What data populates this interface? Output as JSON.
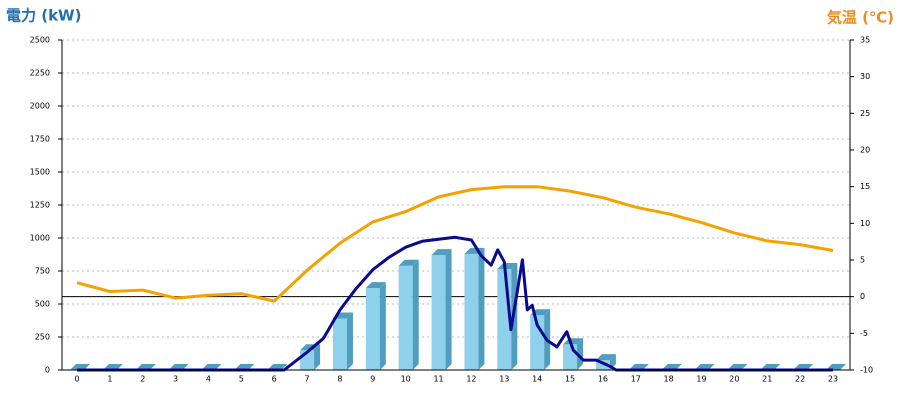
{
  "chart_data": {
    "type": "combo",
    "left_title": "電力 (kW)",
    "left_title_color": "#1f6fb2",
    "right_title": "気温 (℃)",
    "right_title_color": "#f08c1e",
    "categories": [
      "0",
      "1",
      "2",
      "3",
      "4",
      "5",
      "6",
      "7",
      "8",
      "9",
      "10",
      "11",
      "12",
      "13",
      "14",
      "15",
      "16",
      "17",
      "18",
      "19",
      "20",
      "21",
      "22",
      "23"
    ],
    "ylim": [
      0,
      2500
    ],
    "yticks": [
      0,
      250,
      500,
      750,
      1000,
      1250,
      1500,
      1750,
      2000,
      2250,
      2500
    ],
    "y2lim": [
      -10,
      35
    ],
    "y2ticks": [
      -10,
      -5,
      0,
      5,
      10,
      15,
      20,
      25,
      30,
      35
    ],
    "grid": true,
    "series": [
      {
        "type": "bar",
        "color": "#8fd0ec",
        "side_color": "#4f9dbf",
        "values": [
          0,
          0,
          0,
          0,
          0,
          0,
          0,
          150,
          390,
          620,
          790,
          870,
          880,
          765,
          415,
          195,
          75,
          0,
          0,
          0,
          0,
          0,
          0,
          0
        ]
      },
      {
        "type": "line",
        "color": "#0a0a8c",
        "x": [
          0,
          6.3,
          7,
          7.5,
          8,
          8.5,
          9,
          9.5,
          10,
          10.5,
          11,
          11.5,
          12,
          12.3,
          12.6,
          12.8,
          13,
          13.2,
          13.4,
          13.55,
          13.7,
          13.85,
          14,
          14.3,
          14.6,
          14.9,
          15.1,
          15.4,
          15.8,
          16.2,
          16.4,
          23
        ],
        "values": [
          0,
          0,
          135,
          240,
          455,
          620,
          760,
          855,
          930,
          975,
          990,
          1005,
          985,
          865,
          795,
          910,
          820,
          305,
          605,
          835,
          455,
          490,
          340,
          225,
          175,
          290,
          150,
          75,
          75,
          30,
          0,
          0
        ]
      },
      {
        "type": "line",
        "axis": "y2",
        "color": "#f5a100",
        "values": [
          1.9,
          0.7,
          0.9,
          -0.2,
          0.2,
          0.4,
          -0.6,
          3.6,
          7.3,
          10.2,
          11.6,
          13.6,
          14.6,
          15.0,
          15.0,
          14.4,
          13.5,
          12.2,
          11.3,
          10.1,
          8.7,
          7.6,
          7.1,
          6.3
        ]
      }
    ]
  }
}
